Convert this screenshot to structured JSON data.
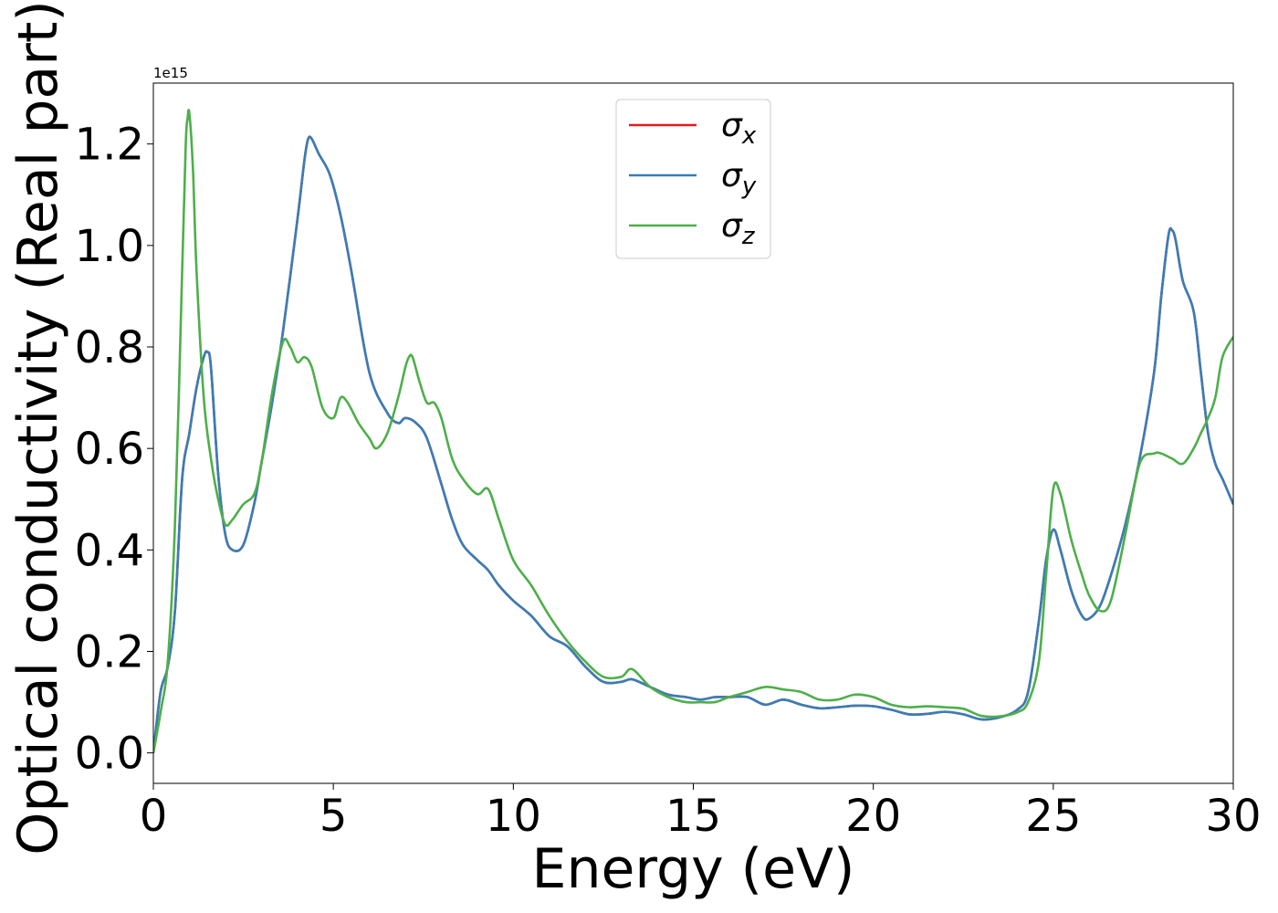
{
  "chart_data": {
    "type": "line",
    "xlabel": "Energy (eV)",
    "ylabel": "Optical conductivity (Real part)",
    "y_offset_label": "1e15",
    "xlim": [
      0,
      30
    ],
    "ylim": [
      -0.06,
      1.32
    ],
    "xticks": [
      0,
      5,
      10,
      15,
      20,
      25,
      30
    ],
    "yticks": [
      0.0,
      0.2,
      0.4,
      0.6,
      0.8,
      1.0,
      1.2
    ],
    "xtick_labels": [
      "0",
      "5",
      "10",
      "15",
      "20",
      "25",
      "30"
    ],
    "ytick_labels": [
      "0.0",
      "0.2",
      "0.4",
      "0.6",
      "0.8",
      "1.0",
      "1.2"
    ],
    "grid": false,
    "legend": {
      "location": "upper center",
      "entries": [
        {
          "symbol": "σ",
          "sub": "x",
          "color": "#e41a1c"
        },
        {
          "symbol": "σ",
          "sub": "y",
          "color": "#377eb8"
        },
        {
          "symbol": "σ",
          "sub": "z",
          "color": "#4daf4a"
        }
      ]
    },
    "series": [
      {
        "name": "σx",
        "color": "#e41a1c",
        "x": [
          0,
          0.2,
          0.4,
          0.6,
          0.8,
          1.0,
          1.2,
          1.4,
          1.5,
          1.6,
          1.8,
          2.0,
          2.2,
          2.5,
          2.8,
          3.0,
          3.3,
          3.6,
          4.0,
          4.2,
          4.3,
          4.4,
          4.6,
          4.9,
          5.2,
          5.5,
          6.0,
          6.5,
          6.8,
          7.0,
          7.3,
          7.6,
          8.0,
          8.3,
          8.6,
          9.0,
          9.3,
          9.6,
          10.0,
          10.5,
          11.0,
          11.5,
          12.0,
          12.5,
          13.0,
          13.3,
          13.8,
          14.3,
          14.8,
          15.2,
          15.6,
          16.0,
          16.5,
          17.0,
          17.5,
          18.0,
          18.5,
          19.0,
          19.5,
          20.0,
          20.5,
          21.0,
          21.5,
          22.0,
          22.5,
          23.0,
          23.5,
          24.0,
          24.3,
          24.6,
          24.8,
          25.0,
          25.2,
          25.5,
          25.8,
          26.0,
          26.3,
          26.6,
          27.0,
          27.4,
          27.8,
          28.0,
          28.2,
          28.3,
          28.4,
          28.6,
          28.9,
          29.1,
          29.3,
          29.5,
          29.7,
          30.0
        ],
        "y": [
          0.0,
          0.12,
          0.17,
          0.28,
          0.54,
          0.63,
          0.72,
          0.78,
          0.79,
          0.76,
          0.55,
          0.43,
          0.4,
          0.41,
          0.49,
          0.57,
          0.69,
          0.83,
          1.05,
          1.17,
          1.21,
          1.21,
          1.18,
          1.14,
          1.06,
          0.95,
          0.75,
          0.67,
          0.65,
          0.66,
          0.65,
          0.62,
          0.53,
          0.46,
          0.41,
          0.38,
          0.36,
          0.33,
          0.3,
          0.27,
          0.23,
          0.21,
          0.17,
          0.14,
          0.14,
          0.145,
          0.13,
          0.115,
          0.11,
          0.105,
          0.11,
          0.11,
          0.11,
          0.095,
          0.105,
          0.095,
          0.088,
          0.09,
          0.093,
          0.092,
          0.085,
          0.076,
          0.077,
          0.081,
          0.076,
          0.066,
          0.07,
          0.085,
          0.12,
          0.26,
          0.38,
          0.44,
          0.4,
          0.32,
          0.27,
          0.265,
          0.29,
          0.35,
          0.45,
          0.58,
          0.75,
          0.9,
          1.02,
          1.03,
          1.01,
          0.93,
          0.87,
          0.75,
          0.63,
          0.57,
          0.54,
          0.49
        ]
      },
      {
        "name": "σy",
        "color": "#377eb8",
        "x": [
          0,
          0.2,
          0.4,
          0.6,
          0.8,
          1.0,
          1.2,
          1.4,
          1.5,
          1.6,
          1.8,
          2.0,
          2.2,
          2.5,
          2.8,
          3.0,
          3.3,
          3.6,
          4.0,
          4.2,
          4.3,
          4.4,
          4.6,
          4.9,
          5.2,
          5.5,
          6.0,
          6.5,
          6.8,
          7.0,
          7.3,
          7.6,
          8.0,
          8.3,
          8.6,
          9.0,
          9.3,
          9.6,
          10.0,
          10.5,
          11.0,
          11.5,
          12.0,
          12.5,
          13.0,
          13.3,
          13.8,
          14.3,
          14.8,
          15.2,
          15.6,
          16.0,
          16.5,
          17.0,
          17.5,
          18.0,
          18.5,
          19.0,
          19.5,
          20.0,
          20.5,
          21.0,
          21.5,
          22.0,
          22.5,
          23.0,
          23.5,
          24.0,
          24.3,
          24.6,
          24.8,
          25.0,
          25.2,
          25.5,
          25.8,
          26.0,
          26.3,
          26.6,
          27.0,
          27.4,
          27.8,
          28.0,
          28.2,
          28.3,
          28.4,
          28.6,
          28.9,
          29.1,
          29.3,
          29.5,
          29.7,
          30.0
        ],
        "y": [
          0.0,
          0.12,
          0.17,
          0.28,
          0.54,
          0.63,
          0.72,
          0.78,
          0.79,
          0.76,
          0.55,
          0.43,
          0.4,
          0.41,
          0.49,
          0.57,
          0.69,
          0.83,
          1.05,
          1.17,
          1.21,
          1.21,
          1.18,
          1.14,
          1.06,
          0.95,
          0.75,
          0.67,
          0.65,
          0.66,
          0.65,
          0.62,
          0.53,
          0.46,
          0.41,
          0.38,
          0.36,
          0.33,
          0.3,
          0.27,
          0.23,
          0.21,
          0.17,
          0.14,
          0.14,
          0.145,
          0.13,
          0.115,
          0.11,
          0.105,
          0.11,
          0.11,
          0.11,
          0.095,
          0.105,
          0.095,
          0.088,
          0.09,
          0.093,
          0.092,
          0.085,
          0.076,
          0.077,
          0.081,
          0.076,
          0.066,
          0.07,
          0.085,
          0.12,
          0.26,
          0.38,
          0.44,
          0.4,
          0.32,
          0.27,
          0.265,
          0.29,
          0.35,
          0.45,
          0.58,
          0.75,
          0.9,
          1.02,
          1.03,
          1.01,
          0.93,
          0.87,
          0.75,
          0.63,
          0.57,
          0.54,
          0.49
        ]
      },
      {
        "name": "σz",
        "color": "#4daf4a",
        "x": [
          0,
          0.2,
          0.4,
          0.6,
          0.8,
          0.9,
          0.95,
          1.0,
          1.1,
          1.2,
          1.4,
          1.6,
          1.8,
          2.0,
          2.2,
          2.5,
          2.8,
          3.0,
          3.3,
          3.6,
          3.8,
          4.0,
          4.2,
          4.4,
          4.7,
          5.0,
          5.2,
          5.4,
          5.7,
          6.0,
          6.2,
          6.5,
          6.8,
          7.0,
          7.1,
          7.2,
          7.4,
          7.6,
          7.8,
          8.0,
          8.3,
          8.6,
          9.0,
          9.3,
          9.6,
          10.0,
          10.5,
          11.0,
          11.5,
          12.0,
          12.5,
          13.0,
          13.3,
          13.8,
          14.3,
          14.8,
          15.2,
          15.6,
          16.0,
          16.5,
          17.0,
          17.5,
          18.0,
          18.5,
          19.0,
          19.5,
          20.0,
          20.5,
          21.0,
          21.5,
          22.0,
          22.5,
          23.0,
          23.5,
          24.0,
          24.3,
          24.6,
          24.8,
          25.0,
          25.2,
          25.5,
          25.8,
          26.0,
          26.3,
          26.6,
          27.0,
          27.4,
          27.8,
          28.0,
          28.3,
          28.6,
          28.9,
          29.1,
          29.3,
          29.5,
          29.7,
          30.0
        ],
        "y": [
          0.0,
          0.08,
          0.18,
          0.45,
          0.95,
          1.2,
          1.25,
          1.26,
          1.15,
          0.95,
          0.7,
          0.58,
          0.5,
          0.45,
          0.46,
          0.49,
          0.51,
          0.57,
          0.71,
          0.81,
          0.8,
          0.77,
          0.78,
          0.76,
          0.68,
          0.66,
          0.7,
          0.69,
          0.65,
          0.62,
          0.6,
          0.63,
          0.7,
          0.76,
          0.78,
          0.78,
          0.73,
          0.69,
          0.69,
          0.66,
          0.58,
          0.54,
          0.51,
          0.52,
          0.46,
          0.38,
          0.33,
          0.27,
          0.22,
          0.18,
          0.15,
          0.15,
          0.165,
          0.13,
          0.11,
          0.1,
          0.1,
          0.1,
          0.11,
          0.12,
          0.13,
          0.125,
          0.12,
          0.105,
          0.105,
          0.115,
          0.11,
          0.095,
          0.09,
          0.092,
          0.09,
          0.087,
          0.073,
          0.072,
          0.08,
          0.1,
          0.18,
          0.35,
          0.52,
          0.51,
          0.42,
          0.35,
          0.31,
          0.28,
          0.3,
          0.43,
          0.57,
          0.59,
          0.59,
          0.58,
          0.57,
          0.6,
          0.63,
          0.66,
          0.7,
          0.78,
          0.82
        ]
      }
    ]
  }
}
